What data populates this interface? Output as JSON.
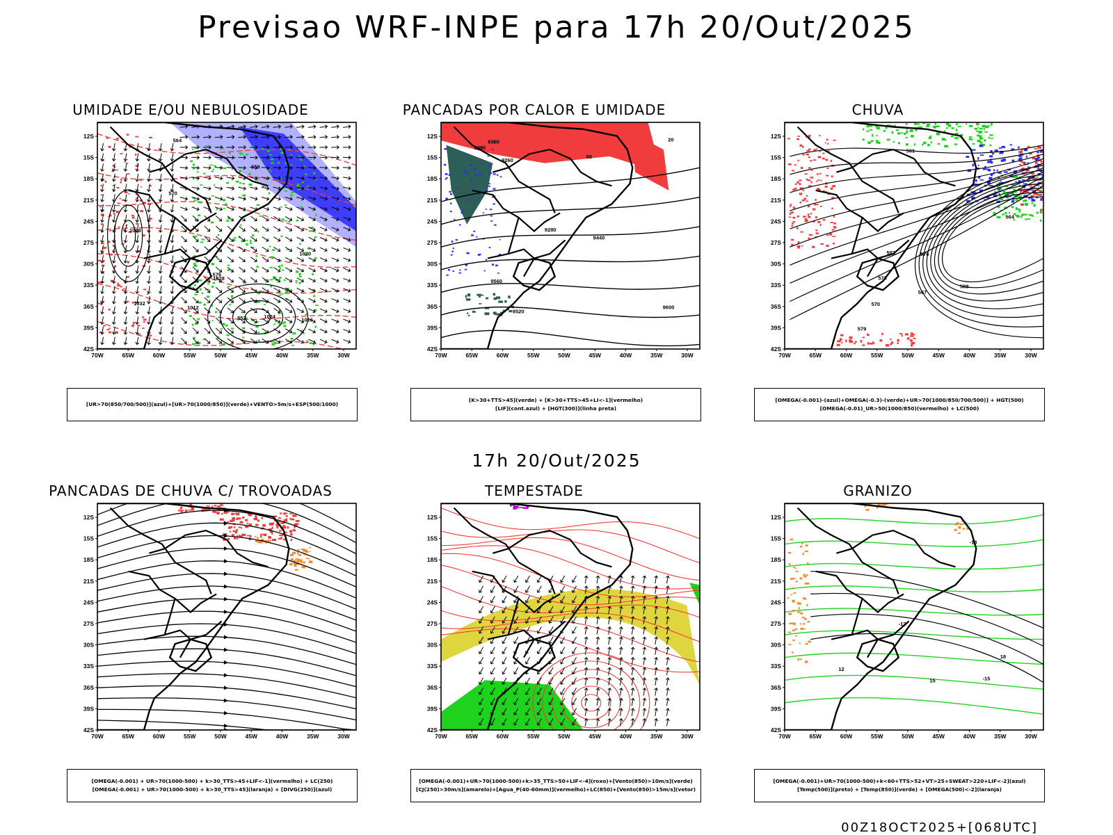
{
  "main_title": "Previsao WRF-INPE  para 17h 20/Out/2025",
  "mid_title": "17h 20/Out/2025",
  "footer": "00Z18OCT2025+[068UTC]",
  "lat_ticks": [
    "12S",
    "15S",
    "18S",
    "21S",
    "24S",
    "27S",
    "30S",
    "33S",
    "36S",
    "39S",
    "42S"
  ],
  "lon_ticks": [
    "70W",
    "65W",
    "60W",
    "55W",
    "50W",
    "45W",
    "40W",
    "35W",
    "30W"
  ],
  "colors": {
    "red": "#f03c3c",
    "blue": "#2a2aff",
    "light_blue": "#a8a8ff",
    "green": "#1ed21e",
    "orange": "#f08a2a",
    "yellow": "#dcd22a",
    "purple": "#b400d2",
    "dark_teal": "#2e5e58",
    "black": "#000000"
  },
  "panels": [
    {
      "title": "UMIDADE E/OU NEBULOSIDADE",
      "legend": [
        "[UR>70(850/700/500)](azul)+[UR>70(1000/850)](verde)+VENTO>5m/s+ESP(500/1000)"
      ],
      "labels": [
        "1012",
        "1008",
        "1016",
        "1020",
        "1024",
        "1028",
        "1032",
        "576",
        "570",
        "564",
        "558",
        "552"
      ]
    },
    {
      "title": "PANCADAS POR CALOR E UMIDADE",
      "legend": [
        "[K>30+TTS>45](verde) + [K>30+TTS>45+LI<-1](vermelho)",
        "[LIF](cont.azul) + [HGT(300)](linha preta)"
      ],
      "labels": [
        "9600",
        "9560",
        "9520",
        "9440",
        "9380",
        "9360",
        "9280",
        "9260",
        "20",
        "80"
      ]
    },
    {
      "title": "CHUVA",
      "legend": [
        "[OMEGA(-0.001)-(azul)+OMEGA(-0.3)-(verde)+UR>70(1000/850/700/500)] + HGT(500)",
        "[OMEGA(-0.01)_UR>50(1000/850)(vermelho) + LC(500)"
      ],
      "labels": [
        "582",
        "579",
        "576",
        "573",
        "570",
        "567",
        "564",
        "561",
        "588"
      ]
    },
    {
      "title": "PANCADAS DE CHUVA C/ TROVOADAS",
      "legend": [
        "[OMEGA(-0.001) + UR>70(1000-500) + k>30_TTS>45+LIF<-1](vermelho) + LC(250)",
        "[OMEGA(-0.001) + UR>70(1000-500) + k>30_TTS>45](laranja) + [DIVG(250)](azul)"
      ],
      "labels": []
    },
    {
      "title": "TEMPESTADE",
      "legend": [
        "[OMEGA(-0.001)+UR>70(1000-500)+k>35_TTS>50+LIF<-4](roxo)+[Vento(850)>10m/s](verde)",
        "[CJ(250)>30m/s](amarelo)+[Agua_P(40-60mm)](vermelho)+LC(850)+[Vento(850)>15m/s](vetor)"
      ],
      "labels": []
    },
    {
      "title": "GRANIZO",
      "legend": [
        "[OMEGA(-0.001)+UR>70(1000-500)+k<60+TTS>52+VT>25+SWEAT>220+LIF<-2](azul)",
        "[Temp(500)](preto) + [Temp(850)](verde) + [OMEGA(500)<-2](laranja)"
      ],
      "labels": [
        "-12",
        "-15",
        "-18",
        "12",
        "15",
        "18"
      ]
    }
  ]
}
